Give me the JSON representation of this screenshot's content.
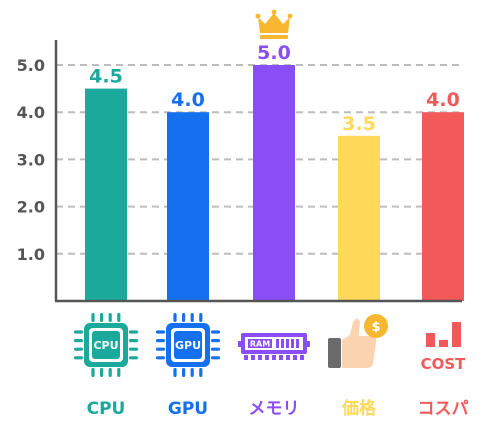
{
  "chart_data": {
    "type": "bar",
    "categories": [
      "CPU",
      "GPU",
      "メモリ",
      "価格",
      "コスパ"
    ],
    "values": [
      4.5,
      4.0,
      5.0,
      3.5,
      4.0
    ],
    "value_labels": [
      "4.5",
      "4.0",
      "5.0",
      "3.5",
      "4.0"
    ],
    "colors": [
      "#1aa99b",
      "#1570ef",
      "#8a4ef6",
      "#ffd95a",
      "#f25a5a"
    ],
    "yticks": [
      "1.0",
      "2.0",
      "3.0",
      "4.0",
      "5.0"
    ],
    "ylim": [
      0,
      5.5
    ],
    "grid": true,
    "highlight": "crown-icon over top value",
    "icons": [
      {
        "name": "cpu-chip-icon",
        "text": "CPU"
      },
      {
        "name": "gpu-chip-icon",
        "text": "GPU"
      },
      {
        "name": "ram-module-icon",
        "text": "RAM"
      },
      {
        "name": "thumbs-up-coin-icon",
        "text": "$"
      },
      {
        "name": "cost-chart-icon",
        "text": "COST"
      }
    ]
  }
}
